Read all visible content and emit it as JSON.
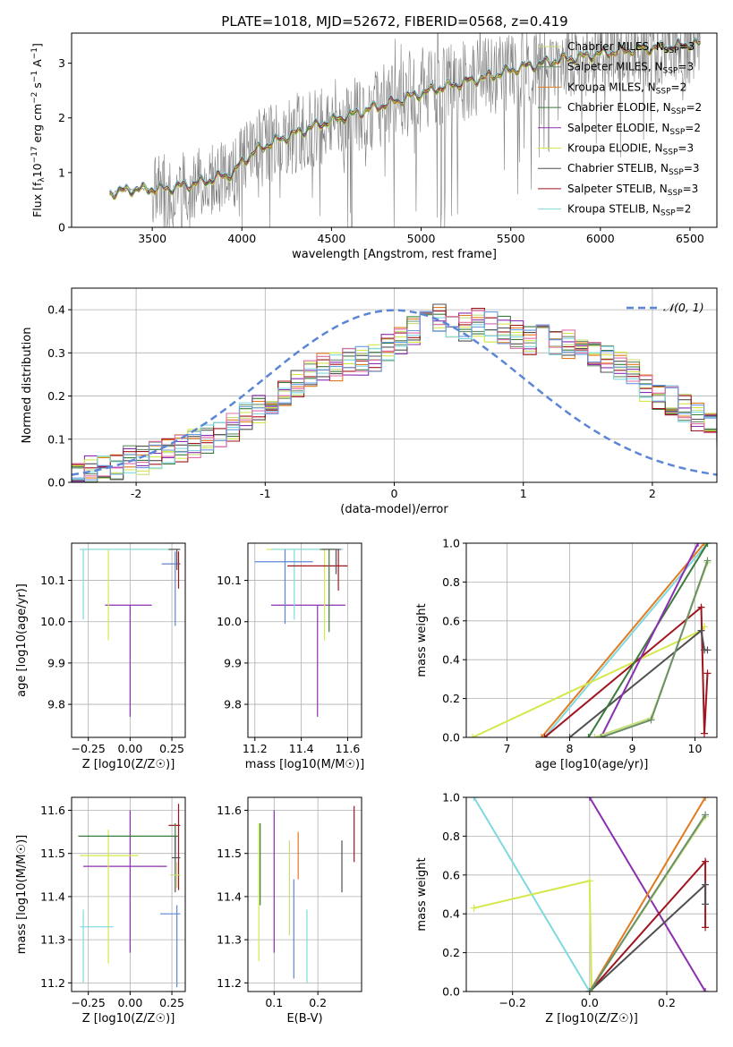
{
  "figure": {
    "title": "PLATE=1018, MJD=52672, FIBERID=0568, z=0.419"
  },
  "colors": {
    "chabrier_miles": "#c8e07a",
    "salpeter_miles": "#6b8f6b",
    "kroupa_miles": "#e07b1f",
    "chabrier_elodie": "#3a7a3a",
    "salpeter_elodie": "#8b2fb0",
    "kroupa_elodie": "#d4e84a",
    "chabrier_stelib": "#505050",
    "salpeter_stelib": "#a0141e",
    "kroupa_stelib": "#7fd8e0",
    "observed": "#808080",
    "normal": "#5b86d6"
  },
  "chart_data": [
    {
      "id": "spectrum",
      "type": "line",
      "xlabel": "wavelength [Angstrom, rest frame]",
      "ylabel": "Flux [f_λ 10^-17 erg cm^-2 s^-1 A^-1]",
      "xlim": [
        3050,
        6650
      ],
      "ylim": [
        0,
        3.55
      ],
      "xticks": [
        3500,
        4000,
        4500,
        5000,
        5500,
        6000,
        6500
      ],
      "yticks": [
        0,
        1,
        2,
        3
      ],
      "legend_position": "upper right",
      "legend": [
        "Chabrier MILES, N_SSP=3",
        "Salpeter MILES, N_SSP=3",
        "Kroupa MILES, N_SSP=2",
        "Chabrier ELODIE, N_SSP=2",
        "Salpeter ELODIE, N_SSP=2",
        "Kroupa ELODIE, N_SSP=3",
        "Chabrier STELIB, N_SSP=3",
        "Salpeter STELIB, N_SSP=3",
        "Kroupa STELIB, N_SSP=2"
      ],
      "model_continuum": {
        "x": [
          3260,
          3300,
          3400,
          3500,
          3600,
          3700,
          3800,
          3900,
          3950,
          4000,
          4100,
          4200,
          4300,
          4400,
          4500,
          4600,
          4700,
          4800,
          4900,
          5000,
          5100,
          5200,
          5300,
          5400,
          5500,
          5600,
          5700,
          5800,
          5900,
          6000,
          6100,
          6200,
          6300,
          6400,
          6500
        ],
        "y": [
          0.62,
          0.65,
          0.7,
          0.7,
          0.72,
          0.78,
          0.85,
          0.95,
          0.98,
          1.2,
          1.45,
          1.6,
          1.72,
          1.85,
          1.95,
          2.05,
          2.15,
          2.25,
          2.35,
          2.45,
          2.55,
          2.62,
          2.7,
          2.78,
          2.88,
          2.95,
          3.02,
          3.08,
          3.12,
          3.18,
          3.22,
          3.26,
          3.28,
          3.3,
          3.35
        ]
      }
    },
    {
      "id": "residuals",
      "type": "line",
      "xlabel": "(data-model)/error",
      "ylabel": "Normed distribution",
      "xlim": [
        -2.5,
        2.5
      ],
      "ylim": [
        0,
        0.45
      ],
      "xticks": [
        -2,
        -1,
        0,
        1,
        2
      ],
      "yticks": [
        0.0,
        0.1,
        0.2,
        0.3,
        0.4
      ],
      "legend_position": "upper right",
      "legend": [
        "𝒩(0, 1)"
      ],
      "hist_bins": {
        "start": -2.5,
        "width": 0.1,
        "base_values": [
          0.02,
          0.03,
          0.03,
          0.04,
          0.05,
          0.05,
          0.06,
          0.07,
          0.08,
          0.09,
          0.1,
          0.11,
          0.13,
          0.15,
          0.17,
          0.19,
          0.21,
          0.23,
          0.25,
          0.27,
          0.27,
          0.28,
          0.28,
          0.29,
          0.31,
          0.33,
          0.35,
          0.37,
          0.38,
          0.37,
          0.36,
          0.37,
          0.36,
          0.35,
          0.34,
          0.33,
          0.33,
          0.33,
          0.32,
          0.31,
          0.3,
          0.29,
          0.27,
          0.25,
          0.22,
          0.2,
          0.19,
          0.17,
          0.15,
          0.13,
          0.11,
          0.1,
          0.09,
          0.08,
          0.07,
          0.06,
          0.06,
          0.05,
          0.05,
          0.04
        ]
      }
    },
    {
      "id": "age_vs_Z",
      "type": "scatter",
      "xlabel": "Z [log10(Z/Z☉)]",
      "ylabel": "age [log10(age/yr)]",
      "xlim": [
        -0.35,
        0.33
      ],
      "ylim": [
        9.72,
        10.19
      ],
      "xticks": [
        -0.25,
        0.0,
        0.25
      ],
      "xticklabels": [
        "−0.25",
        "0.00",
        "0.25"
      ],
      "yticks": [
        9.8,
        9.9,
        10.0,
        10.1
      ],
      "errorbars": [
        {
          "x": 0.0,
          "xerr": [
            0.15,
            0.13
          ],
          "y": 10.04,
          "yerr": [
            0.27,
            0.0
          ],
          "color": "salpeter_elodie"
        },
        {
          "x": -0.13,
          "xerr": [
            0.17,
            0.42
          ],
          "y": 10.175,
          "yerr": [
            0.22,
            0.0
          ],
          "color": "kroupa_elodie"
        },
        {
          "x": -0.28,
          "xerr": [
            0.02,
            0.58
          ],
          "y": 10.175,
          "yerr": [
            0.17,
            0.0
          ],
          "color": "kroupa_stelib"
        },
        {
          "x": 0.29,
          "xerr": [
            0.1,
            0.01
          ],
          "y": 10.14,
          "yerr": [
            0.06,
            0.03
          ],
          "color": "salpeter_stelib"
        },
        {
          "x": 0.27,
          "xerr": [
            0.08,
            0.02
          ],
          "y": 10.14,
          "yerr": [
            0.15,
            0.03
          ],
          "color": "normal"
        },
        {
          "x": 0.28,
          "xerr": [
            0.05,
            0.02
          ],
          "y": 10.175,
          "yerr": [
            0.05,
            0.0
          ],
          "color": "chabrier_stelib"
        }
      ]
    },
    {
      "id": "age_vs_mass",
      "type": "scatter",
      "xlabel": "mass [log10(M/M☉)]",
      "ylabel": "",
      "xlim": [
        11.17,
        11.66
      ],
      "ylim": [
        9.72,
        10.19
      ],
      "xticks": [
        11.2,
        11.4,
        11.6
      ],
      "yticks": [
        9.8,
        9.9,
        10.0,
        10.1
      ],
      "errorbars": [
        {
          "x": 11.47,
          "xerr": [
            0.2,
            0.12
          ],
          "y": 10.04,
          "yerr": [
            0.27,
            0.0
          ],
          "color": "salpeter_elodie"
        },
        {
          "x": 11.5,
          "xerr": [
            0.25,
            0.06
          ],
          "y": 10.175,
          "yerr": [
            0.22,
            0.0
          ],
          "color": "kroupa_elodie"
        },
        {
          "x": 11.37,
          "xerr": [
            0.1,
            0.21
          ],
          "y": 10.175,
          "yerr": [
            0.17,
            0.0
          ],
          "color": "kroupa_stelib"
        },
        {
          "x": 11.56,
          "xerr": [
            0.22,
            0.04
          ],
          "y": 10.135,
          "yerr": [
            0.06,
            0.04
          ],
          "color": "salpeter_stelib"
        },
        {
          "x": 11.33,
          "xerr": [
            0.13,
            0.12
          ],
          "y": 10.145,
          "yerr": [
            0.15,
            0.03
          ],
          "color": "normal"
        },
        {
          "x": 11.52,
          "xerr": [
            0.04,
            0.03
          ],
          "y": 10.175,
          "yerr": [
            0.2,
            0.0
          ],
          "color": "chabrier_elodie"
        },
        {
          "x": 11.55,
          "xerr": [
            0.06,
            0.02
          ],
          "y": 10.175,
          "yerr": [
            0.06,
            0.0
          ],
          "color": "chabrier_stelib"
        }
      ]
    },
    {
      "id": "weight_vs_age",
      "type": "line",
      "xlabel": "age [log10(age/yr)]",
      "ylabel": "mass weight",
      "xlim": [
        6.35,
        10.35
      ],
      "ylim": [
        0,
        1
      ],
      "xticks": [
        7,
        8,
        9,
        10
      ],
      "yticks": [
        0.0,
        0.2,
        0.4,
        0.6,
        0.8,
        1.0
      ],
      "series": [
        {
          "color": "kroupa_miles",
          "x": [
            7.55,
            10.15
          ],
          "y": [
            0.0,
            1.0
          ]
        },
        {
          "color": "kroupa_stelib",
          "x": [
            7.6,
            10.2
          ],
          "y": [
            0.0,
            1.0
          ]
        },
        {
          "color": "kroupa_elodie",
          "x": [
            6.45,
            10.1,
            10.15
          ],
          "y": [
            0.0,
            0.55,
            0.57
          ]
        },
        {
          "color": "salpeter_stelib",
          "x": [
            7.6,
            10.1,
            10.15,
            10.2
          ],
          "y": [
            0.0,
            0.67,
            0.02,
            0.33
          ]
        },
        {
          "color": "chabrier_stelib",
          "x": [
            8.0,
            10.1,
            10.15,
            10.2
          ],
          "y": [
            0.0,
            0.55,
            0.45,
            0.45
          ]
        },
        {
          "color": "chabrier_elodie",
          "x": [
            8.3,
            10.2
          ],
          "y": [
            0.0,
            1.0
          ]
        },
        {
          "color": "salpeter_elodie",
          "x": [
            8.5,
            10.05
          ],
          "y": [
            0.0,
            1.0
          ]
        },
        {
          "color": "chabrier_miles",
          "x": [
            8.4,
            9.3,
            10.2
          ],
          "y": [
            0.0,
            0.1,
            0.9
          ]
        },
        {
          "color": "salpeter_miles",
          "x": [
            8.5,
            9.3,
            10.2
          ],
          "y": [
            0.0,
            0.09,
            0.91
          ]
        }
      ]
    },
    {
      "id": "mass_vs_Z",
      "type": "scatter",
      "xlabel": "Z [log10(Z/Z☉)]",
      "ylabel": "mass [log10(M/M☉)]",
      "xlim": [
        -0.35,
        0.33
      ],
      "ylim": [
        11.18,
        11.63
      ],
      "xticks": [
        -0.25,
        0.0,
        0.25
      ],
      "xticklabels": [
        "−0.25",
        "0.00",
        "0.25"
      ],
      "yticks": [
        11.2,
        11.3,
        11.4,
        11.5,
        11.6
      ],
      "errorbars": [
        {
          "x": 0.0,
          "xerr": [
            0.28,
            0.22
          ],
          "y": 11.47,
          "yerr": [
            0.2,
            0.13
          ],
          "color": "salpeter_elodie"
        },
        {
          "x": -0.13,
          "xerr": [
            0.17,
            0.18
          ],
          "y": 11.495,
          "yerr": [
            0.25,
            0.06
          ],
          "color": "kroupa_elodie"
        },
        {
          "x": -0.28,
          "xerr": [
            0.02,
            0.18
          ],
          "y": 11.33,
          "yerr": [
            0.13,
            0.04
          ],
          "color": "kroupa_stelib"
        },
        {
          "x": 0.29,
          "xerr": [
            0.06,
            0.01
          ],
          "y": 11.565,
          "yerr": [
            0.15,
            0.05
          ],
          "color": "salpeter_stelib"
        },
        {
          "x": 0.28,
          "xerr": [
            0.1,
            0.02
          ],
          "y": 11.36,
          "yerr": [
            0.17,
            0.02
          ],
          "color": "normal"
        },
        {
          "x": 0.27,
          "xerr": [
            0.58,
            0.02
          ],
          "y": 11.54,
          "yerr": [
            0.04,
            0.03
          ],
          "color": "chabrier_elodie"
        },
        {
          "x": 0.27,
          "xerr": [
            0.02,
            0.03
          ],
          "y": 11.49,
          "yerr": [
            0.08,
            0.05
          ],
          "color": "chabrier_stelib"
        },
        {
          "x": 0.28,
          "xerr": [
            0.04,
            0.02
          ],
          "y": 11.45,
          "yerr": [
            0.03,
            0.03
          ],
          "color": "chabrier_miles"
        }
      ]
    },
    {
      "id": "mass_vs_EBV",
      "type": "scatter",
      "xlabel": "E(B-V)",
      "ylabel": "",
      "xlim": [
        0.04,
        0.3
      ],
      "ylim": [
        11.18,
        11.63
      ],
      "xticks": [
        0.1,
        0.2
      ],
      "yticks": [
        11.2,
        11.3,
        11.4,
        11.5,
        11.6
      ],
      "errorbars": [
        {
          "x": 0.065,
          "yerr": [
            11.25,
            11.57
          ],
          "color": "kroupa_elodie"
        },
        {
          "x": 0.068,
          "yerr": [
            11.38,
            11.57
          ],
          "color": "chabrier_elodie"
        },
        {
          "x": 0.1,
          "yerr": [
            11.27,
            11.6
          ],
          "color": "salpeter_elodie"
        },
        {
          "x": 0.135,
          "yerr": [
            11.31,
            11.53
          ],
          "color": "chabrier_miles"
        },
        {
          "x": 0.145,
          "yerr": [
            11.21,
            11.44
          ],
          "color": "normal"
        },
        {
          "x": 0.155,
          "yerr": [
            11.44,
            11.55
          ],
          "color": "kroupa_miles"
        },
        {
          "x": 0.175,
          "yerr": [
            11.2,
            11.37
          ],
          "color": "kroupa_stelib"
        },
        {
          "x": 0.255,
          "yerr": [
            11.41,
            11.53
          ],
          "color": "chabrier_stelib"
        },
        {
          "x": 0.283,
          "yerr": [
            11.48,
            11.61
          ],
          "color": "salpeter_stelib"
        }
      ]
    },
    {
      "id": "weight_vs_Z",
      "type": "line",
      "xlabel": "Z [log10(Z/Z☉)]",
      "ylabel": "mass weight",
      "xlim": [
        -0.32,
        0.33
      ],
      "ylim": [
        0,
        1
      ],
      "xticks": [
        -0.2,
        0.0,
        0.2
      ],
      "xticklabels": [
        "−0.2",
        "0.0",
        "0.2"
      ],
      "yticks": [
        0.0,
        0.2,
        0.4,
        0.6,
        0.8,
        1.0
      ],
      "series": [
        {
          "color": "kroupa_stelib",
          "x": [
            -0.3,
            0.0
          ],
          "y": [
            1.0,
            0.0
          ]
        },
        {
          "color": "kroupa_elodie",
          "x": [
            -0.3,
            0.0,
            0.005,
            0.0
          ],
          "y": [
            0.43,
            0.57,
            0.0,
            0.0
          ]
        },
        {
          "color": "salpeter_elodie",
          "x": [
            0.0,
            0.3
          ],
          "y": [
            1.0,
            0.0
          ]
        },
        {
          "color": "kroupa_miles",
          "x": [
            0.0,
            0.3
          ],
          "y": [
            0.0,
            1.0
          ]
        },
        {
          "color": "salpeter_stelib",
          "x": [
            0.0,
            0.3,
            0.3
          ],
          "y": [
            0.0,
            0.67,
            0.33
          ]
        },
        {
          "color": "chabrier_stelib",
          "x": [
            0.0,
            0.3,
            0.3
          ],
          "y": [
            0.0,
            0.55,
            0.45
          ]
        },
        {
          "color": "chabrier_miles",
          "x": [
            0.0,
            0.3
          ],
          "y": [
            0.0,
            0.9
          ]
        },
        {
          "color": "salpeter_miles",
          "x": [
            0.0,
            0.3
          ],
          "y": [
            0.0,
            0.91
          ]
        }
      ]
    }
  ]
}
